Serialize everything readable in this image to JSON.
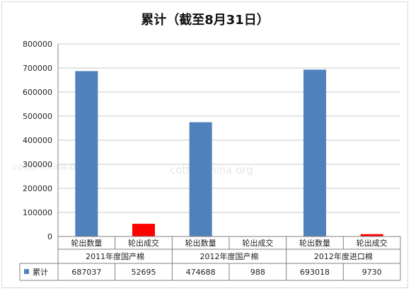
{
  "chart_data": {
    "type": "bar",
    "title": "累计（截至8月31日）",
    "y_ticks": [
      "800000",
      "700000",
      "600000",
      "500000",
      "400000",
      "300000",
      "200000",
      "100000",
      "0"
    ],
    "ylim": [
      0,
      800000
    ],
    "grid": true,
    "groups": [
      "2011年度国产棉",
      "2012年度国产棉",
      "2012年度进口棉"
    ],
    "categories": [
      "轮出数量",
      "轮出成交",
      "轮出数量",
      "轮出成交",
      "轮出数量",
      "轮出成交"
    ],
    "series": [
      {
        "name": "累计",
        "values": [
          687037,
          52695,
          474688,
          988,
          693018,
          9730
        ],
        "value_labels": [
          "687037",
          "52695",
          "474688",
          "988",
          "693018",
          "9730"
        ]
      }
    ],
    "colors": {
      "quantity": "#4f81bd",
      "deal": "#ff0000",
      "grid": "#c8c8c8",
      "axis": "#808080"
    },
    "legend_placement": "data-table",
    "watermark": "cottonchina.org"
  }
}
